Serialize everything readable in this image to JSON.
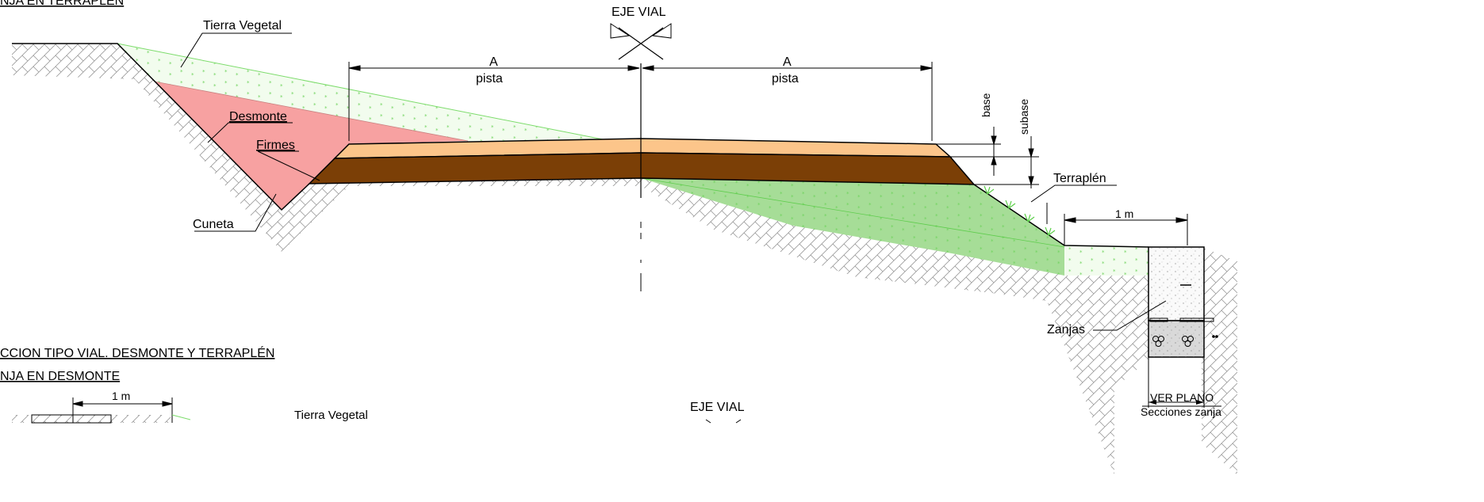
{
  "top_section": {
    "title_partial": "NJA EN TERRAPLÉN",
    "axis_label": "EJE VIAL",
    "dim_left": {
      "letter": "A",
      "text": "pista"
    },
    "dim_right": {
      "letter": "A",
      "text": "pista"
    },
    "labels": {
      "tierra_vegetal": "Tierra Vegetal",
      "desmonte": "Desmonte",
      "firmes": "Firmes",
      "cuneta": "Cuneta",
      "terraplen": "Terraplén",
      "base": "base",
      "subase": "subase",
      "one_m": "1 m",
      "zanjas": "Zanjas",
      "ver_plano": "VER PLANO",
      "secciones_zanja": "Secciones zanja"
    }
  },
  "section_title": "CCION TIPO VIAL. DESMONTE Y TERRAPLÉN",
  "bottom_section": {
    "subtitle": "NJA EN DESMONTE",
    "one_m": "1 m",
    "tierra_vegetal": "Tierra Vegetal",
    "axis_label": "EJE VIAL"
  },
  "colors": {
    "desmonte": "#f5a3a3",
    "base_layer": "#fbc58a",
    "subbase_layer": "#7a3e05",
    "terraplen": "#a5dc96",
    "tierra_vegetal": "#eefbe8",
    "green_line": "#5ccf4a"
  }
}
